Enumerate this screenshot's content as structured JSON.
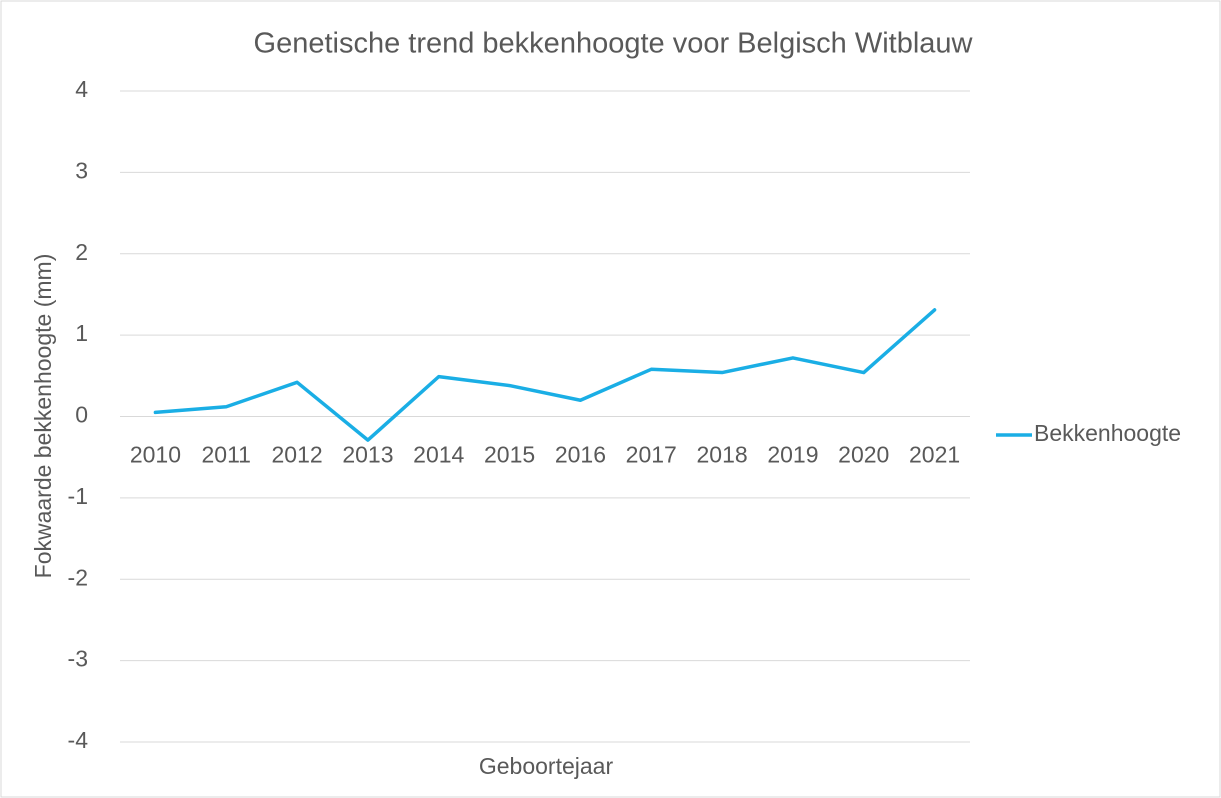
{
  "chart_data": {
    "type": "line",
    "title": "Genetische trend bekkenhoogte voor Belgisch Witblauw",
    "x_label": "Geboortejaar",
    "y_label": "Fokwaarde bekkenhoogte (mm)",
    "categories": [
      "2010",
      "2011",
      "2012",
      "2013",
      "2014",
      "2015",
      "2016",
      "2017",
      "2018",
      "2019",
      "2020",
      "2021"
    ],
    "series": [
      {
        "name": "Bekkenhoogte",
        "color": "#1aaee5",
        "values": [
          0.05,
          0.12,
          0.42,
          -0.29,
          0.49,
          0.38,
          0.2,
          0.58,
          0.54,
          0.72,
          0.54,
          1.31
        ]
      }
    ],
    "ylim": [
      -4,
      4
    ],
    "yticks": [
      -4,
      -3,
      -2,
      -1,
      0,
      1,
      2,
      3,
      4
    ],
    "grid": true,
    "legend": "right"
  }
}
